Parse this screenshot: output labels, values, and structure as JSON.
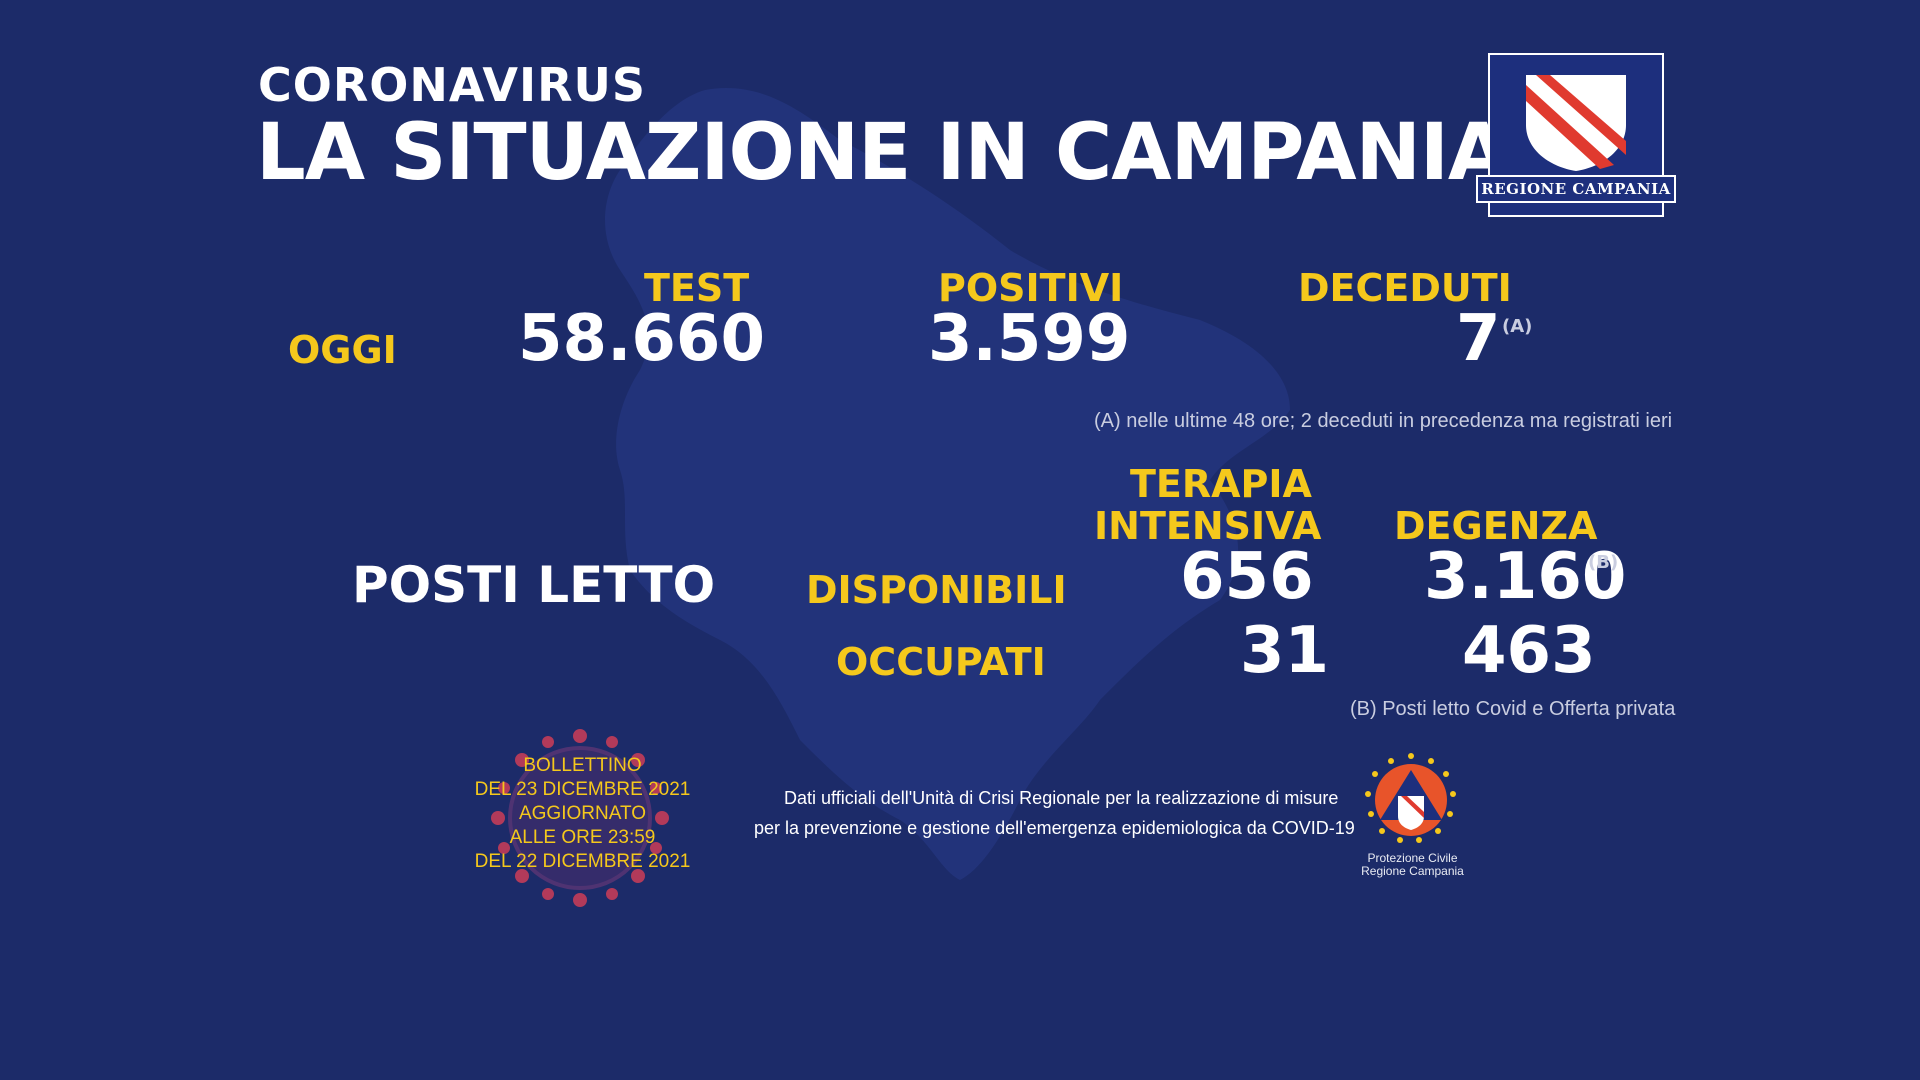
{
  "header": {
    "kicker": "CORONAVIRUS",
    "title": "LA SITUAZIONE IN CAMPANIA"
  },
  "logo": {
    "label": "REGIONE CAMPANIA"
  },
  "today": {
    "row_label": "OGGI",
    "test": {
      "label": "TEST",
      "value": "58.660"
    },
    "positivi": {
      "label": "POSITIVI",
      "value": "3.599"
    },
    "deceduti": {
      "label": "DECEDUTI",
      "value": "7",
      "note_marker": "(A)"
    },
    "note_a": "(A) nelle ultime 48 ore; 2 deceduti in precedenza ma registrati ieri"
  },
  "beds": {
    "title": "POSTI LETTO",
    "col_terapia_line1": "TERAPIA",
    "col_terapia_line2": "INTENSIVA",
    "col_degenza": "DEGENZA",
    "disponibili": {
      "label": "DISPONIBILI",
      "terapia": "656",
      "degenza": "3.160",
      "note_marker": "(B)"
    },
    "occupati": {
      "label": "OCCUPATI",
      "terapia": "31",
      "degenza": "463"
    },
    "note_b": "(B) Posti letto Covid e Offerta privata"
  },
  "bulletin": {
    "line1": "BOLLETTINO",
    "line2": "DEL 23 DICEMBRE 2021",
    "line3": "AGGIORNATO",
    "line4": "ALLE ORE 23:59",
    "line5": "DEL 22 DICEMBRE 2021"
  },
  "source": {
    "line1": "Dati ufficiali dell'Unità di Crisi Regionale per la realizzazione di misure",
    "line2": "per la prevenzione e gestione dell'emergenza epidemiologica da COVID-19"
  },
  "protezione_civile": {
    "line1": "Protezione Civile",
    "line2": "Regione Campania"
  },
  "colors": {
    "background": "#1c2b69",
    "accent_yellow": "#f5c81c",
    "text_white": "#ffffff",
    "logo_red": "#e03a2f"
  }
}
